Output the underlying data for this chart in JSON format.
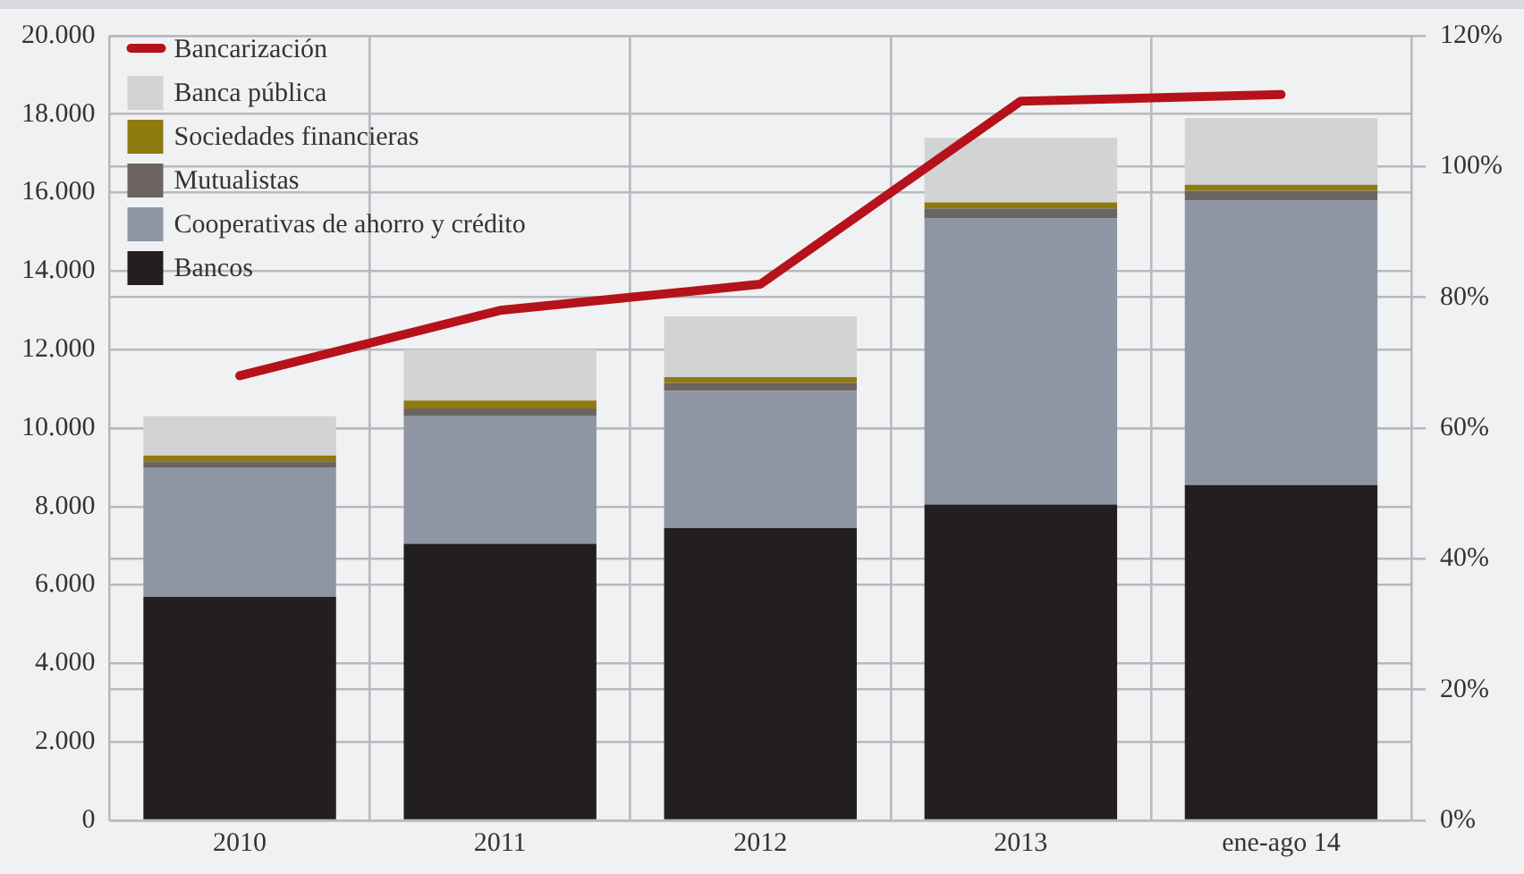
{
  "chart_data": {
    "type": "bar",
    "stacked": true,
    "categories": [
      "2010",
      "2011",
      "2012",
      "2013",
      "ene-ago 14"
    ],
    "series": [
      {
        "name": "Bancos",
        "color": "#231f20",
        "values": [
          5700,
          7050,
          7450,
          8050,
          8550
        ]
      },
      {
        "name": "Cooperativas de ahorro y crédito",
        "color": "#8e95a4",
        "values": [
          3300,
          3250,
          3500,
          7300,
          7250
        ]
      },
      {
        "name": "Mutualistas",
        "color": "#6b6460",
        "values": [
          150,
          200,
          200,
          250,
          250
        ]
      },
      {
        "name": "Sociedades financieras",
        "color": "#8f7a10",
        "values": [
          150,
          200,
          150,
          150,
          150
        ]
      },
      {
        "name": "Banca pública",
        "color": "#d2d3d5",
        "values": [
          1000,
          1300,
          1550,
          1650,
          1700
        ]
      },
      {
        "name": "Bancarización",
        "type": "line",
        "axis": "y2",
        "color": "#b5121b",
        "values": [
          68,
          78,
          82,
          110,
          111
        ]
      }
    ],
    "ylim": [
      0,
      20000
    ],
    "yticks": [
      {
        "value": 0,
        "label": "0"
      },
      {
        "value": 2000,
        "label": "2.000"
      },
      {
        "value": 4000,
        "label": "4.000"
      },
      {
        "value": 6000,
        "label": "6.000"
      },
      {
        "value": 8000,
        "label": "8.000"
      },
      {
        "value": 10000,
        "label": "10.000"
      },
      {
        "value": 12000,
        "label": "12.000"
      },
      {
        "value": 14000,
        "label": "14.000"
      },
      {
        "value": 16000,
        "label": "16.000"
      },
      {
        "value": 18000,
        "label": "18.000"
      },
      {
        "value": 20000,
        "label": "20.000"
      }
    ],
    "y2lim": [
      0,
      120
    ],
    "y2ticks": [
      {
        "value": 0,
        "label": "0%"
      },
      {
        "value": 20,
        "label": "20%"
      },
      {
        "value": 40,
        "label": "40%"
      },
      {
        "value": 60,
        "label": "60%"
      },
      {
        "value": 80,
        "label": "80%"
      },
      {
        "value": 100,
        "label": "100%"
      },
      {
        "value": 120,
        "label": "120%"
      }
    ],
    "grid": true,
    "legend": "top left",
    "marker": "none",
    "line_style": "solid"
  }
}
